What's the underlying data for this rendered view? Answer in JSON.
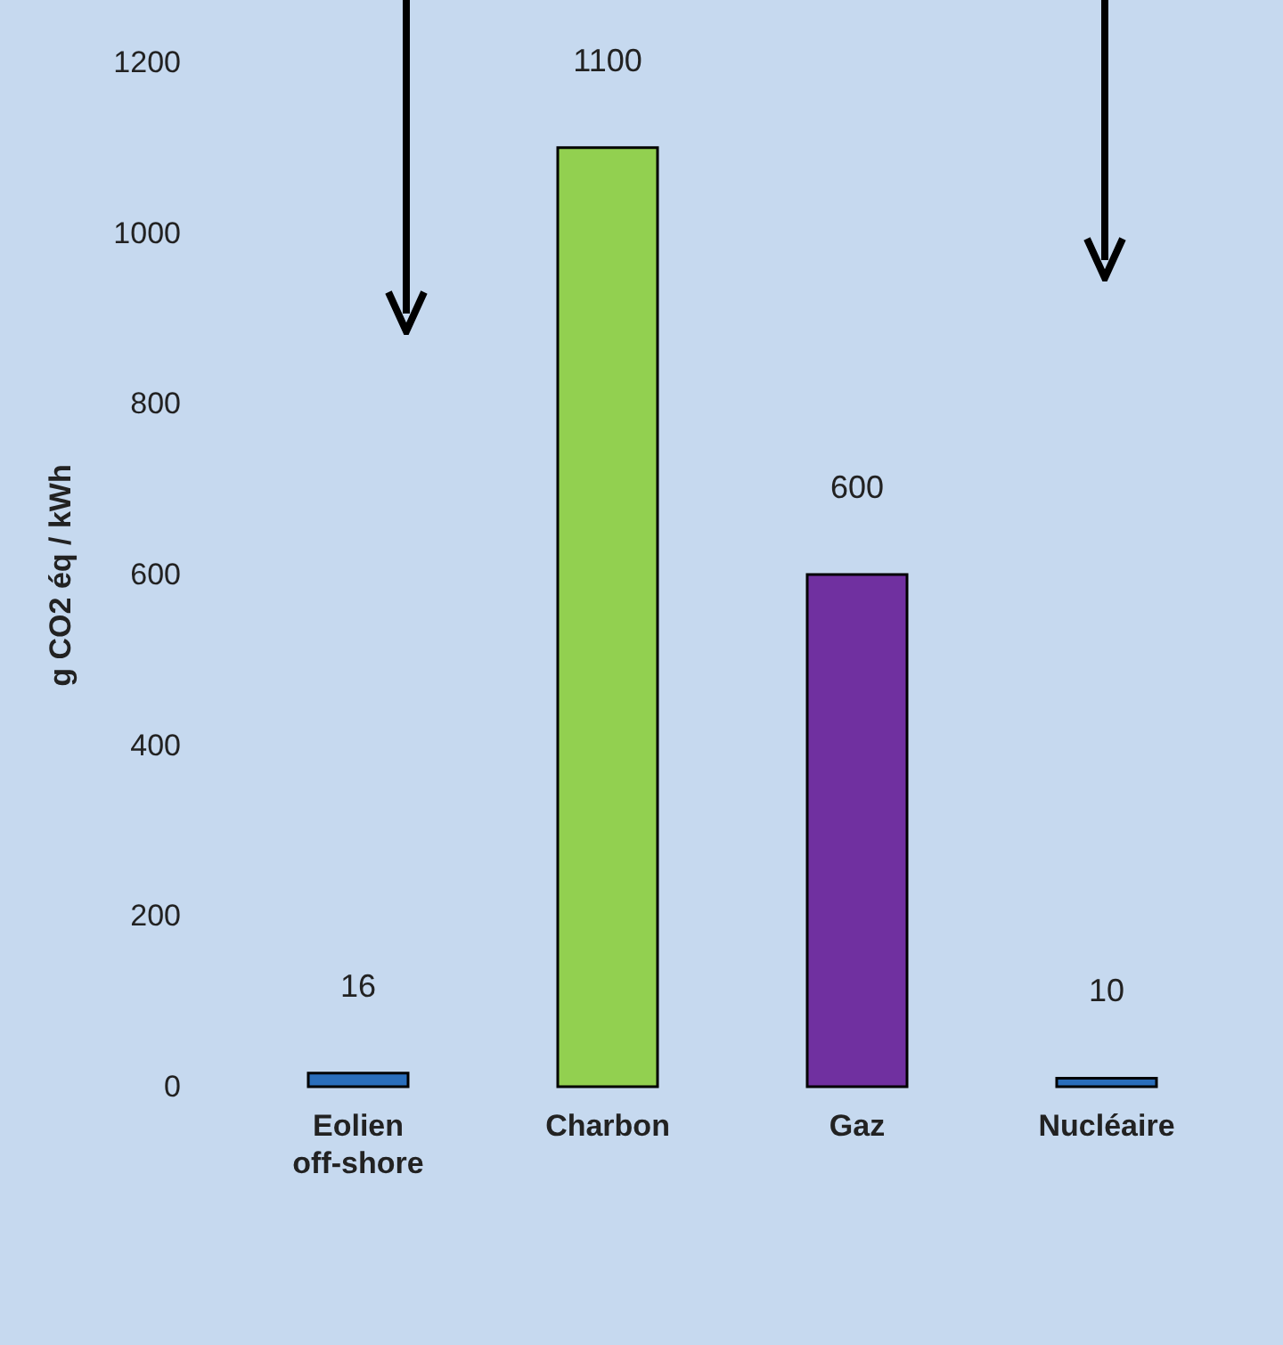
{
  "chart_data": {
    "type": "bar",
    "ylabel": "g CO2  éq / kWh",
    "categories": [
      "Eolien off-shore",
      "Charbon",
      "Gaz",
      "Nucléaire"
    ],
    "values": [
      16,
      1100,
      600,
      10
    ],
    "colors": [
      "#2a6ebb",
      "#92d050",
      "#7030a0",
      "#2a6ebb"
    ],
    "ylim": [
      0,
      1200
    ],
    "yticks": [
      0,
      200,
      400,
      600,
      800,
      1000,
      1200
    ],
    "data_labels": true
  }
}
